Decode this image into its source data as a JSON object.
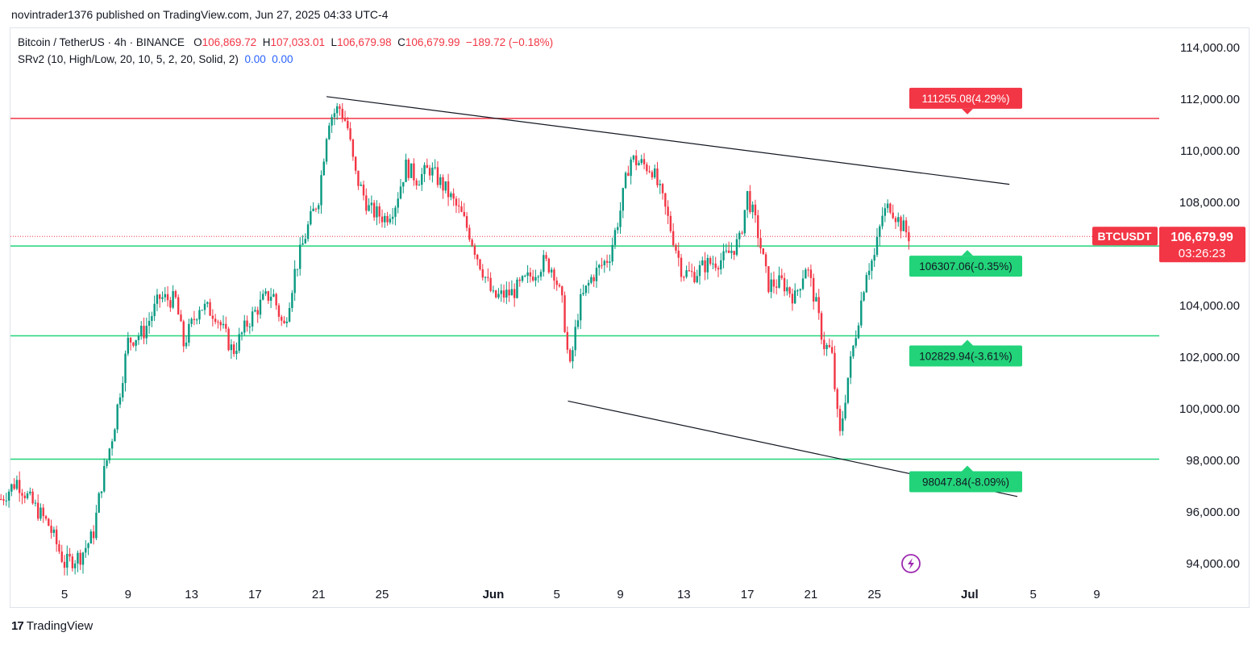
{
  "header": {
    "published_line": "novintrader1376 published on TradingView.com, Jun 27, 2025 04:33 UTC-4"
  },
  "legend": {
    "symbol_line": "Bitcoin / TetherUS · 4h · BINANCE",
    "open_label": "O",
    "open_value": "106,869.72",
    "high_label": "H",
    "high_value": "107,033.01",
    "low_label": "L",
    "low_value": "106,679.98",
    "close_label": "C",
    "close_value": "106,679.99",
    "change": "−189.72 (−0.18%)",
    "indicator": "SRv2 (10, High/Low, 20, 10, 5, 2, 20, Solid, 2)",
    "ind_val1": "0.00",
    "ind_val2": "0.00"
  },
  "price_badge": {
    "symbol": "BTCUSDT",
    "price": "106,679.99",
    "countdown": "03:26:23"
  },
  "footer": {
    "brand": "TradingView"
  },
  "colors": {
    "up": "#089981",
    "down": "#f23645",
    "support": "#22d37a",
    "resistance": "#f23645",
    "trendline": "#131722"
  },
  "chart_data": {
    "type": "candlestick",
    "ylim": [
      92800,
      115000
    ],
    "y_ticks": [
      "114,000.00",
      "112,000.00",
      "110,000.00",
      "108,000.00",
      "106,000.00",
      "104,000.00",
      "102,000.00",
      "100,000.00",
      "98,000.00",
      "96,000.00",
      "94,000.00"
    ],
    "y_tick_values": [
      114000,
      112000,
      110000,
      108000,
      106000,
      104000,
      102000,
      100000,
      98000,
      96000,
      94000
    ],
    "x_ticks": [
      "5",
      "9",
      "13",
      "17",
      "21",
      "25",
      "Jun",
      "5",
      "9",
      "13",
      "17",
      "21",
      "25",
      "Jul",
      "5",
      "9"
    ],
    "x_tick_days": [
      5,
      9,
      13,
      17,
      21,
      25,
      32,
      36,
      40,
      44,
      48,
      52,
      56,
      62,
      66,
      70
    ],
    "x_axis_note": "days since May 0, 2025",
    "levels": [
      {
        "kind": "resistance",
        "value": 111255.08,
        "label": "111255.08(4.29%)"
      },
      {
        "kind": "support",
        "value": 106307.06,
        "label": "106307.06(-0.35%)"
      },
      {
        "kind": "support",
        "value": 102829.94,
        "label": "102829.94(-3.61%)"
      },
      {
        "kind": "support",
        "value": 98047.84,
        "label": "98047.84(-8.09%)"
      }
    ],
    "trendlines": [
      {
        "name": "upper",
        "points": [
          [
            21.5,
            112100
          ],
          [
            64.5,
            108700
          ]
        ]
      },
      {
        "name": "lower",
        "points": [
          [
            36.7,
            100300
          ],
          [
            65.0,
            96600
          ]
        ]
      }
    ],
    "last_close": 106679.99,
    "path": [
      [
        1,
        96500
      ],
      [
        2,
        97200
      ],
      [
        3,
        96300
      ],
      [
        4,
        95500
      ],
      [
        5,
        94000
      ],
      [
        6,
        94300
      ],
      [
        6.8,
        95100
      ],
      [
        7.3,
        97000
      ],
      [
        8.1,
        99200
      ],
      [
        9,
        102600
      ],
      [
        10,
        103000
      ],
      [
        11,
        104300
      ],
      [
        12,
        104200
      ],
      [
        12.5,
        102500
      ],
      [
        13.5,
        104000
      ],
      [
        14.5,
        103700
      ],
      [
        15.6,
        102200
      ],
      [
        16.5,
        103300
      ],
      [
        17.5,
        104200
      ],
      [
        18.1,
        104500
      ],
      [
        18.8,
        103100
      ],
      [
        19.5,
        105300
      ],
      [
        20.3,
        107000
      ],
      [
        21,
        108200
      ],
      [
        21.6,
        111200
      ],
      [
        22.3,
        111700
      ],
      [
        22.8,
        111000
      ],
      [
        23.3,
        109100
      ],
      [
        24.2,
        107700
      ],
      [
        25.2,
        107400
      ],
      [
        25.8,
        107900
      ],
      [
        26.5,
        109400
      ],
      [
        27.2,
        108900
      ],
      [
        28,
        109300
      ],
      [
        29,
        108500
      ],
      [
        30,
        107500
      ],
      [
        30.5,
        106800
      ],
      [
        31,
        105900
      ],
      [
        32,
        104300
      ],
      [
        33.2,
        104500
      ],
      [
        34.1,
        105000
      ],
      [
        35.2,
        105700
      ],
      [
        35.8,
        105400
      ],
      [
        36.4,
        103900
      ],
      [
        36.8,
        101400
      ],
      [
        37.4,
        104000
      ],
      [
        38.2,
        105100
      ],
      [
        39.3,
        105900
      ],
      [
        40,
        107700
      ],
      [
        40.6,
        109700
      ],
      [
        41.3,
        109500
      ],
      [
        42,
        109300
      ],
      [
        42.7,
        108000
      ],
      [
        43.3,
        106700
      ],
      [
        43.9,
        105300
      ],
      [
        44.6,
        105200
      ],
      [
        45.4,
        105600
      ],
      [
        46.5,
        105800
      ],
      [
        47.5,
        106500
      ],
      [
        48,
        108300
      ],
      [
        48.6,
        107000
      ],
      [
        49.3,
        104800
      ],
      [
        50.2,
        104900
      ],
      [
        51,
        104300
      ],
      [
        51.7,
        105600
      ],
      [
        52.3,
        104100
      ],
      [
        52.8,
        102500
      ],
      [
        53.3,
        102200
      ],
      [
        53.8,
        98800
      ],
      [
        54.3,
        101100
      ],
      [
        54.9,
        103200
      ],
      [
        55.5,
        105400
      ],
      [
        56,
        105900
      ],
      [
        56.5,
        107500
      ],
      [
        57,
        107900
      ],
      [
        57.6,
        107200
      ],
      [
        58.2,
        106680
      ]
    ]
  }
}
